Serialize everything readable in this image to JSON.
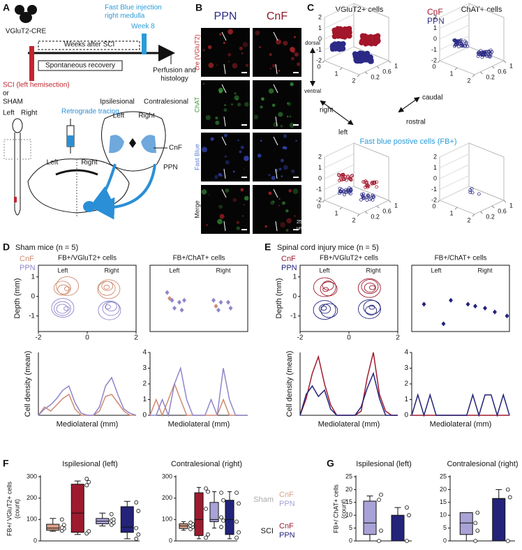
{
  "panel_a": {
    "letter": "A",
    "mouse_line": "VGluT2-CRE",
    "injection": [
      "Fast Blue injection",
      "right medulla"
    ],
    "week": "Week 8",
    "weeks_after": "Weeks after SCI",
    "recovery": "Spontaneous recovery",
    "perfusion": [
      "Perfusion and",
      "histology"
    ],
    "sci": "SCI (left hemisection)",
    "or": "or",
    "sham": "SHAM",
    "cord_sides": [
      "Left",
      "Right"
    ],
    "ipsilesional": "Ipsilesional",
    "contralesional": "Contralesional",
    "retrograde": "Retrograde tracing",
    "section_sides": [
      "Left",
      "Right"
    ],
    "slice_sides": [
      "Left",
      "Right"
    ],
    "cnf": "CnF",
    "ppn": "PPN"
  },
  "panel_b": {
    "letter": "B",
    "columns": [
      {
        "name": "PPN",
        "color": "#2b2a86"
      },
      {
        "name": "CnF",
        "color": "#8b1a2b"
      }
    ],
    "rows": [
      {
        "name": "cre (VGluT2)",
        "color": "#c0272d"
      },
      {
        "name": "ChAT",
        "color": "#3a9a3a"
      },
      {
        "name": "Fast Blue",
        "color": "#5a7fd0"
      },
      {
        "name": "Merge",
        "color": "#222222"
      }
    ],
    "dorsal": "dorsal",
    "ventral": "ventral",
    "scale": [
      "25",
      "µm"
    ]
  },
  "panel_c": {
    "letter": "C",
    "vglut_title": "VGluT2+ cells",
    "chat_title": "ChAT+ cells",
    "legend": [
      {
        "name": "CnF",
        "color": "#a3162b"
      },
      {
        "name": "PPN",
        "color": "#2b2a86"
      }
    ],
    "fb_title": "Fast blue postive cells (FB+)",
    "directions": {
      "right": "right",
      "left": "left",
      "caudal": "caudal",
      "rostral": "rostral"
    },
    "zlim": [
      -2,
      2
    ],
    "zticks": [
      2,
      1,
      0,
      -1,
      -2
    ],
    "xlim": [
      0,
      2
    ],
    "xticks": [
      0,
      1,
      2
    ],
    "ylim": [
      0,
      1
    ],
    "yticks": [
      0.2,
      0.6,
      1
    ]
  },
  "panel_d": {
    "letter": "D",
    "title": "Sham mice (n = 5)",
    "legend": [
      {
        "name": "CnF",
        "color": "#d08a70"
      },
      {
        "name": "PPN",
        "color": "#8e86cc"
      }
    ],
    "vglut_title": "FB+/VGluT2+ cells",
    "chat_title": "FB+/ChAT+ cells",
    "sides": [
      "Left",
      "Right"
    ],
    "depth_label": "Depth (mm)",
    "density_label": "Cell density (mean)",
    "x_label": "Mediolateral (mm)",
    "xlim": [
      -2,
      2
    ],
    "xticks": [
      -2,
      0,
      2
    ],
    "ylim": [
      -1.8,
      1.6
    ],
    "yticks": [
      1,
      0,
      -1
    ],
    "vglut_density_ylim": [
      0,
      30
    ],
    "density_ylim": [
      0,
      4
    ],
    "density_yticks": [
      4,
      3,
      2,
      1,
      0
    ],
    "x": [
      -2,
      -1.75,
      -1.5,
      -1.25,
      -1,
      -0.75,
      -0.5,
      -0.25,
      0,
      0.25,
      0.5,
      0.75,
      1,
      1.25,
      1.5,
      1.75,
      2
    ],
    "vglut_density": [
      [
        0,
        4,
        2,
        5,
        8,
        10,
        3,
        0,
        0,
        0,
        2,
        9,
        10,
        6,
        2,
        0,
        0
      ],
      [
        0,
        3,
        5,
        8,
        12,
        14,
        6,
        1,
        0,
        0,
        4,
        14,
        18,
        10,
        3,
        1,
        0
      ]
    ],
    "chat_density": [
      [
        0,
        1,
        0,
        1,
        2,
        1,
        0,
        0,
        0,
        0,
        0,
        0,
        1,
        0,
        0,
        0,
        0
      ],
      [
        0,
        0,
        1,
        0,
        2,
        3,
        1,
        0,
        0,
        0,
        1,
        0,
        3,
        1,
        0,
        0,
        0
      ]
    ],
    "chat_points": [
      [
        [
          -1.2,
          -0.1
        ],
        [
          0.7,
          -0.5
        ]
      ],
      [
        [
          -1.3,
          0.2
        ],
        [
          -1.1,
          -0.2
        ],
        [
          -0.8,
          -0.3
        ],
        [
          -0.6,
          -0.2
        ],
        [
          -1.0,
          -0.6
        ],
        [
          -0.7,
          -0.7
        ],
        [
          0.6,
          -0.2
        ],
        [
          0.9,
          -0.3
        ],
        [
          1.2,
          -0.3
        ],
        [
          0.8,
          -0.7
        ],
        [
          1.3,
          -0.6
        ]
      ]
    ]
  },
  "panel_e": {
    "letter": "E",
    "title": "Spinal cord injury mice (n = 5)",
    "legend": [
      {
        "name": "CnF",
        "color": "#9e1a2e"
      },
      {
        "name": "PPN",
        "color": "#23237a"
      }
    ],
    "vglut_title": "FB+/VGluT2+ cells",
    "chat_title": "FB+/ChAT+ cells",
    "sides": [
      "Left",
      "Right"
    ],
    "depth_label": "Depth (mm)",
    "density_label": "Cell density (mean)",
    "x_label": "Mediolateral (mm)",
    "xlim": [
      -2,
      2
    ],
    "xticks": [
      -2,
      0,
      2
    ],
    "ylim": [
      -1.8,
      1.6
    ],
    "yticks": [
      1,
      0,
      -1
    ],
    "vglut_density_ylim": [
      0,
      30
    ],
    "density_ylim": [
      0,
      4
    ],
    "density_yticks": [
      4,
      3,
      2,
      1,
      0
    ],
    "x": [
      -2,
      -1.75,
      -1.5,
      -1.25,
      -1,
      -0.75,
      -0.5,
      -0.25,
      0,
      0.25,
      0.5,
      0.75,
      1,
      1.25,
      1.5,
      1.75,
      2
    ],
    "vglut_density": [
      [
        0,
        8,
        20,
        28,
        15,
        5,
        0,
        0,
        0,
        0,
        2,
        18,
        30,
        10,
        2,
        0,
        0
      ],
      [
        0,
        10,
        14,
        9,
        12,
        3,
        0,
        0,
        0,
        0,
        4,
        13,
        20,
        8,
        0,
        0,
        0
      ]
    ],
    "chat_density": [
      [
        0,
        0,
        0,
        0,
        0,
        0,
        0,
        0,
        0,
        0,
        0,
        0,
        0,
        0,
        0,
        0,
        0
      ],
      [
        0,
        1.3,
        0,
        1.3,
        0,
        0,
        0,
        0,
        0,
        0,
        1.3,
        0,
        1.3,
        1.3,
        0,
        1.3,
        0
      ]
    ],
    "chat_points": [
      [],
      [
        [
          -1.5,
          -0.4
        ],
        [
          -0.4,
          -0.2
        ],
        [
          -0.7,
          -1.4
        ],
        [
          0.3,
          -0.4
        ],
        [
          0.6,
          -0.5
        ],
        [
          1.0,
          -0.6
        ],
        [
          1.4,
          -0.8
        ],
        [
          1.9,
          -1.0
        ]
      ]
    ]
  },
  "panel_f": {
    "letter": "F",
    "titles": [
      "Ispilesional (left)",
      "Contralesional (right)"
    ],
    "y_label": [
      "FB+/ VGluT2+ cells",
      "(count)"
    ],
    "ylim": [
      0,
      300
    ],
    "yticks": [
      0,
      100,
      200,
      300
    ],
    "legend": [
      {
        "name": "Sham",
        "color": "#aaaaaa",
        "items": [
          {
            "name": "CnF",
            "color": "#d9a08a"
          },
          {
            "name": "PPN",
            "color": "#a8a2d6"
          }
        ]
      },
      {
        "name": "SCI",
        "color": "#111111",
        "items": [
          {
            "name": "CnF",
            "color": "#9e1a2e"
          },
          {
            "name": "PPN",
            "color": "#23237a"
          }
        ]
      }
    ],
    "panels": [
      [
        {
          "color": "#d9a08a",
          "whiskers": [
            45,
            105
          ],
          "quartiles": [
            50,
            78
          ],
          "median": 60,
          "points": [
            48,
            58,
            62,
            75,
            100
          ]
        },
        {
          "color": "#9e1a2e",
          "whiskers": [
            30,
            280
          ],
          "quartiles": [
            40,
            265
          ],
          "median": 130,
          "points": [
            35,
            45,
            260,
            275,
            290
          ]
        },
        {
          "color": "#a8a2d6",
          "whiskers": [
            70,
            130
          ],
          "quartiles": [
            80,
            105
          ],
          "median": 92,
          "points": [
            75,
            85,
            95,
            100,
            125
          ]
        },
        {
          "color": "#23237a",
          "whiskers": [
            10,
            185
          ],
          "quartiles": [
            40,
            160
          ],
          "median": 65,
          "points": [
            10,
            30,
            60,
            140,
            180
          ]
        }
      ],
      [
        {
          "color": "#d9a08a",
          "whiskers": [
            50,
            90
          ],
          "quartiles": [
            58,
            80
          ],
          "median": 70,
          "points": [
            55,
            65,
            72,
            78,
            85
          ]
        },
        {
          "color": "#9e1a2e",
          "whiskers": [
            10,
            250
          ],
          "quartiles": [
            25,
            225
          ],
          "median": 100,
          "points": [
            15,
            30,
            150,
            230,
            245
          ]
        },
        {
          "color": "#a8a2d6",
          "whiskers": [
            60,
            230
          ],
          "quartiles": [
            90,
            180
          ],
          "median": 100,
          "points": [
            65,
            95,
            110,
            190,
            225
          ]
        },
        {
          "color": "#23237a",
          "whiskers": [
            10,
            230
          ],
          "quartiles": [
            30,
            190
          ],
          "median": 100,
          "points": [
            15,
            40,
            90,
            175,
            225
          ]
        }
      ]
    ]
  },
  "panel_g": {
    "letter": "G",
    "titles": [
      "Ispilesional (left)",
      "Contralesional (right)"
    ],
    "y_label": [
      "FB+/ ChAT+ cells",
      "(count)"
    ],
    "ylim": [
      0,
      25
    ],
    "yticks": [
      0,
      5,
      10,
      15,
      20,
      25
    ],
    "panels": [
      [
        {
          "color": "#a8a2d6",
          "whiskers": [
            0,
            17.5
          ],
          "quartiles": [
            2.5,
            15.5
          ],
          "median": 7,
          "points": [
            0,
            4,
            16,
            18
          ]
        },
        {
          "color": "#23237a",
          "whiskers": [
            0,
            13
          ],
          "quartiles": [
            0,
            10
          ],
          "median": 0,
          "points": [
            0,
            10,
            13
          ]
        }
      ],
      [
        {
          "color": "#a8a2d6",
          "whiskers": [
            0,
            11
          ],
          "quartiles": [
            2.5,
            11
          ],
          "median": 7,
          "points": [
            0,
            4,
            7,
            11
          ]
        },
        {
          "color": "#23237a",
          "whiskers": [
            0,
            20
          ],
          "quartiles": [
            0,
            16.5
          ],
          "median": 16.5,
          "points": [
            0,
            17,
            20
          ]
        }
      ]
    ]
  }
}
